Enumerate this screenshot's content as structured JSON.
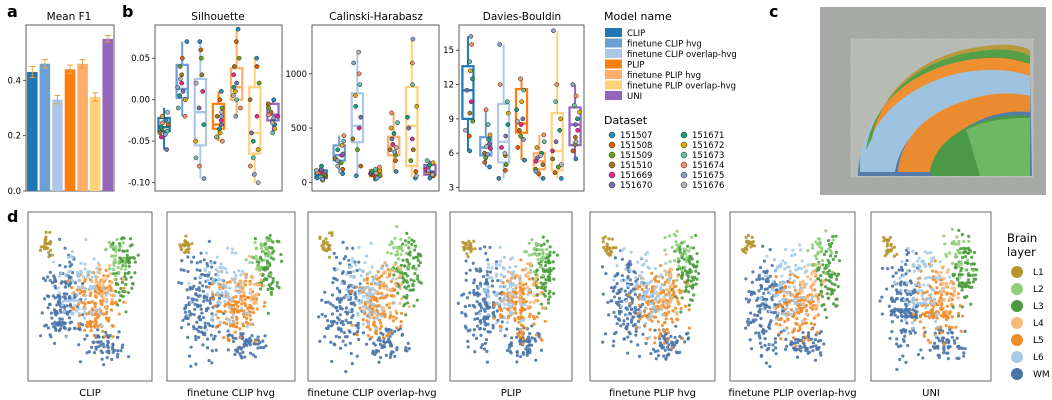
{
  "panel_labels": [
    "a",
    "b",
    "c",
    "d"
  ],
  "models": [
    "CLIP",
    "finetune CLIP hvg",
    "finetune CLIP overlap-hvg",
    "PLIP",
    "finetune PLIP hvg",
    "finetune PLIP overlap-hvg",
    "UNI"
  ],
  "model_colors": [
    "#1f77b4",
    "#6c9fd6",
    "#aec7e8",
    "#ff7f0e",
    "#fdae6b",
    "#ffd27a",
    "#9467bd"
  ],
  "legend_model": {
    "title": "Model name"
  },
  "legend_dataset": {
    "title": "Dataset",
    "items": [
      "151507",
      "151508",
      "151509",
      "151510",
      "151669",
      "151670",
      "151671",
      "151672",
      "151673",
      "151674",
      "151675",
      "151676"
    ],
    "colors": [
      "#2b8cbe",
      "#d95f02",
      "#66a61e",
      "#a6761d",
      "#e7298a",
      "#7570b3",
      "#1b9e77",
      "#e6ab02",
      "#66c2a5",
      "#fc8d62",
      "#8da0cb",
      "#b3b3b3"
    ]
  },
  "legend_brain": {
    "title_lines": [
      "Brain",
      "layer"
    ],
    "items": [
      "L1",
      "L2",
      "L3",
      "L4",
      "L5",
      "L6",
      "WM"
    ],
    "colors": [
      "#b8962e",
      "#8fcf7a",
      "#4a9c3c",
      "#f7b97c",
      "#f28c28",
      "#a6cbe6",
      "#4a74a8"
    ]
  },
  "chart_data": [
    {
      "type": "bar",
      "title": "Mean F1",
      "categories": [
        "CLIP",
        "finetune CLIP hvg",
        "finetune CLIP overlap-hvg",
        "PLIP",
        "finetune PLIP hvg",
        "finetune PLIP overlap-hvg",
        "UNI"
      ],
      "values": [
        0.43,
        0.46,
        0.33,
        0.44,
        0.46,
        0.34,
        0.55
      ],
      "errors": [
        0.02,
        0.015,
        0.015,
        0.015,
        0.015,
        0.015,
        0.012
      ],
      "ylim": [
        0,
        0.6
      ],
      "yticks": [
        "0.0",
        "0.2",
        "0.4"
      ],
      "ytick_values": [
        0,
        0.2,
        0.4
      ]
    },
    {
      "type": "box",
      "title": "Silhouette",
      "ylim": [
        -0.11,
        0.09
      ],
      "yticks": [
        "0.05",
        "0.00",
        "-0.05",
        "-0.10"
      ],
      "ytick_values": [
        0.05,
        0.0,
        -0.05,
        -0.1
      ],
      "boxes": [
        {
          "min": -0.06,
          "q1": -0.038,
          "median": -0.033,
          "q3": -0.022,
          "max": -0.01
        },
        {
          "min": -0.02,
          "q1": 0.002,
          "median": 0.013,
          "q3": 0.042,
          "max": 0.07
        },
        {
          "min": -0.095,
          "q1": -0.055,
          "median": -0.015,
          "q3": 0.025,
          "max": 0.07
        },
        {
          "min": -0.05,
          "q1": -0.035,
          "median": -0.03,
          "q3": -0.005,
          "max": 0.01
        },
        {
          "min": -0.02,
          "q1": 0.0,
          "median": 0.015,
          "q3": 0.038,
          "max": 0.085
        },
        {
          "min": -0.1,
          "q1": -0.065,
          "median": -0.04,
          "q3": 0.015,
          "max": 0.05
        },
        {
          "min": -0.04,
          "q1": -0.025,
          "median": -0.018,
          "q3": -0.005,
          "max": 0.0
        }
      ],
      "points": [
        [
          -0.025,
          -0.03,
          -0.035,
          -0.04,
          -0.045,
          -0.06,
          -0.033,
          -0.02,
          -0.038,
          -0.028,
          -0.042,
          -0.015
        ],
        [
          0.07,
          0.05,
          0.04,
          0.03,
          0.02,
          0.01,
          0.005,
          0.0,
          -0.01,
          -0.02,
          0.015,
          0.025
        ],
        [
          0.07,
          0.06,
          0.05,
          0.03,
          0.01,
          -0.01,
          -0.03,
          -0.05,
          -0.07,
          -0.08,
          -0.095,
          0.02
        ],
        [
          0.01,
          0.0,
          -0.01,
          -0.02,
          -0.025,
          -0.03,
          -0.035,
          -0.04,
          -0.045,
          -0.05,
          -0.02,
          -0.015
        ],
        [
          0.085,
          0.07,
          0.05,
          0.04,
          0.03,
          0.02,
          0.015,
          0.01,
          0.0,
          -0.01,
          -0.02,
          0.005
        ],
        [
          0.05,
          0.04,
          0.02,
          0.0,
          -0.02,
          -0.04,
          -0.05,
          -0.06,
          -0.07,
          -0.08,
          -0.09,
          -0.1
        ],
        [
          0.0,
          -0.005,
          -0.01,
          -0.015,
          -0.02,
          -0.025,
          -0.03,
          -0.035,
          -0.04,
          -0.018,
          -0.022,
          -0.028
        ]
      ]
    },
    {
      "type": "box",
      "title": "Calinski-Harabasz",
      "ylim": [
        -80,
        1450
      ],
      "yticks": [
        "1000",
        "500",
        "0"
      ],
      "ytick_values": [
        1000,
        500,
        0
      ],
      "boxes": [
        {
          "min": 10,
          "q1": 40,
          "median": 70,
          "q3": 110,
          "max": 150
        },
        {
          "min": 80,
          "q1": 200,
          "median": 250,
          "q3": 340,
          "max": 430
        },
        {
          "min": 60,
          "q1": 370,
          "median": 520,
          "q3": 820,
          "max": 1200
        },
        {
          "min": 30,
          "q1": 55,
          "median": 80,
          "q3": 110,
          "max": 140
        },
        {
          "min": 100,
          "q1": 250,
          "median": 330,
          "q3": 420,
          "max": 640
        },
        {
          "min": 40,
          "q1": 150,
          "median": 520,
          "q3": 880,
          "max": 1320
        },
        {
          "min": 40,
          "q1": 70,
          "median": 100,
          "q3": 160,
          "max": 200
        }
      ],
      "points": [
        [
          40,
          60,
          70,
          80,
          100,
          120,
          150,
          20,
          50,
          90,
          30,
          110
        ],
        [
          80,
          120,
          180,
          220,
          250,
          260,
          300,
          340,
          380,
          430,
          200,
          150
        ],
        [
          60,
          150,
          300,
          400,
          500,
          600,
          700,
          800,
          900,
          1000,
          1100,
          1200
        ],
        [
          30,
          50,
          60,
          70,
          80,
          90,
          100,
          110,
          120,
          140,
          40,
          85
        ],
        [
          100,
          200,
          250,
          300,
          350,
          400,
          450,
          500,
          550,
          640,
          280,
          320
        ],
        [
          40,
          100,
          200,
          300,
          400,
          500,
          600,
          700,
          900,
          1100,
          1320,
          60
        ],
        [
          40,
          60,
          80,
          100,
          120,
          140,
          160,
          180,
          200,
          90,
          110,
          70
        ]
      ]
    },
    {
      "type": "box",
      "title": "Davies-Bouldin",
      "ylim": [
        2.7,
        17.2
      ],
      "yticks": [
        "15",
        "12",
        "9",
        "6",
        "3"
      ],
      "ytick_values": [
        15,
        12,
        9,
        6,
        3
      ],
      "boxes": [
        {
          "min": 6.2,
          "q1": 9.0,
          "median": 11.5,
          "q3": 13.6,
          "max": 16.2
        },
        {
          "min": 4.8,
          "q1": 5.8,
          "median": 6.5,
          "q3": 7.4,
          "max": 9.8
        },
        {
          "min": 3.8,
          "q1": 5.2,
          "median": 7.0,
          "q3": 10.3,
          "max": 15.5
        },
        {
          "min": 5.4,
          "q1": 7.8,
          "median": 8.6,
          "q3": 11.6,
          "max": 12.5
        },
        {
          "min": 3.8,
          "q1": 4.6,
          "median": 5.3,
          "q3": 6.0,
          "max": 7.6
        },
        {
          "min": 3.8,
          "q1": 4.5,
          "median": 6.2,
          "q3": 9.5,
          "max": 16.7
        },
        {
          "min": 5.5,
          "q1": 6.7,
          "median": 8.5,
          "q3": 10.0,
          "max": 12.0
        }
      ],
      "points": [
        [
          6.2,
          7.5,
          8.8,
          9.5,
          10.5,
          11.5,
          12.5,
          13.2,
          14.0,
          15.5,
          16.2,
          8.0
        ],
        [
          4.8,
          5.2,
          5.6,
          6.0,
          6.4,
          6.8,
          7.2,
          7.6,
          8.5,
          9.8,
          5.9,
          6.6
        ],
        [
          3.8,
          4.5,
          5.0,
          5.8,
          6.5,
          7.5,
          8.5,
          9.5,
          10.5,
          12.0,
          15.5,
          6.0
        ],
        [
          5.4,
          6.5,
          7.5,
          8.0,
          8.5,
          9.0,
          9.8,
          10.5,
          11.5,
          12.5,
          7.2,
          8.8
        ],
        [
          3.8,
          4.2,
          4.6,
          5.0,
          5.3,
          5.6,
          6.0,
          6.5,
          7.0,
          7.6,
          4.4,
          5.8
        ],
        [
          3.8,
          4.3,
          4.8,
          5.5,
          6.2,
          7.0,
          8.0,
          9.0,
          10.5,
          12.0,
          16.7,
          5.0
        ],
        [
          5.5,
          6.2,
          6.8,
          7.4,
          8.0,
          8.5,
          9.0,
          9.6,
          10.2,
          11.0,
          12.0,
          7.0
        ]
      ]
    }
  ],
  "umap_titles": [
    "CLIP",
    "finetune CLIP hvg",
    "finetune CLIP overlap-hvg",
    "PLIP",
    "finetune PLIP hvg",
    "finetune PLIP overlap-hvg",
    "UNI"
  ]
}
